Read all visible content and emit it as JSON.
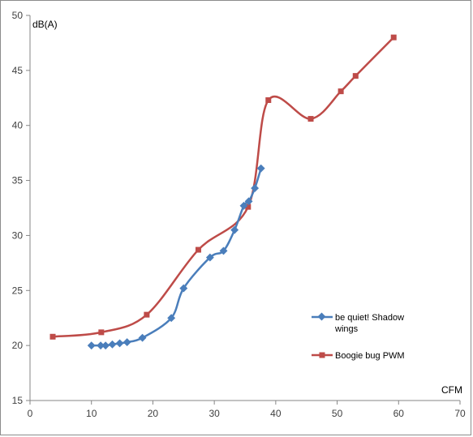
{
  "chart_data": {
    "type": "line",
    "xlabel": "CFM",
    "ylabel": "dB(A)",
    "xlim": [
      0,
      70
    ],
    "ylim": [
      15,
      50
    ],
    "x_ticks": [
      0,
      10,
      20,
      30,
      40,
      50,
      60,
      70
    ],
    "y_ticks": [
      15,
      20,
      25,
      30,
      35,
      40,
      45,
      50
    ],
    "grid": false,
    "legend_position": "right",
    "series": [
      {
        "name": "be quiet! Shadow wings",
        "color": "#4a7ebb",
        "marker": "diamond",
        "x": [
          10,
          11.5,
          12.3,
          13.4,
          14.6,
          15.8,
          18.3,
          23,
          25,
          29.3,
          31.5,
          33.3,
          34.8,
          35.6,
          36.6,
          37.6
        ],
        "y": [
          20,
          20,
          20,
          20.1,
          20.2,
          20.3,
          20.7,
          22.5,
          25.2,
          28,
          28.6,
          30.5,
          32.7,
          33.1,
          34.3,
          36.1
        ]
      },
      {
        "name": "Boogie bug PWM",
        "color": "#be4b48",
        "marker": "square",
        "x": [
          3.7,
          11.6,
          19,
          27.4,
          35.5,
          38.8,
          45.7,
          50.6,
          53,
          59.2
        ],
        "y": [
          20.8,
          21.2,
          22.8,
          28.7,
          32.6,
          42.3,
          40.6,
          43.1,
          44.5,
          48
        ]
      }
    ]
  }
}
